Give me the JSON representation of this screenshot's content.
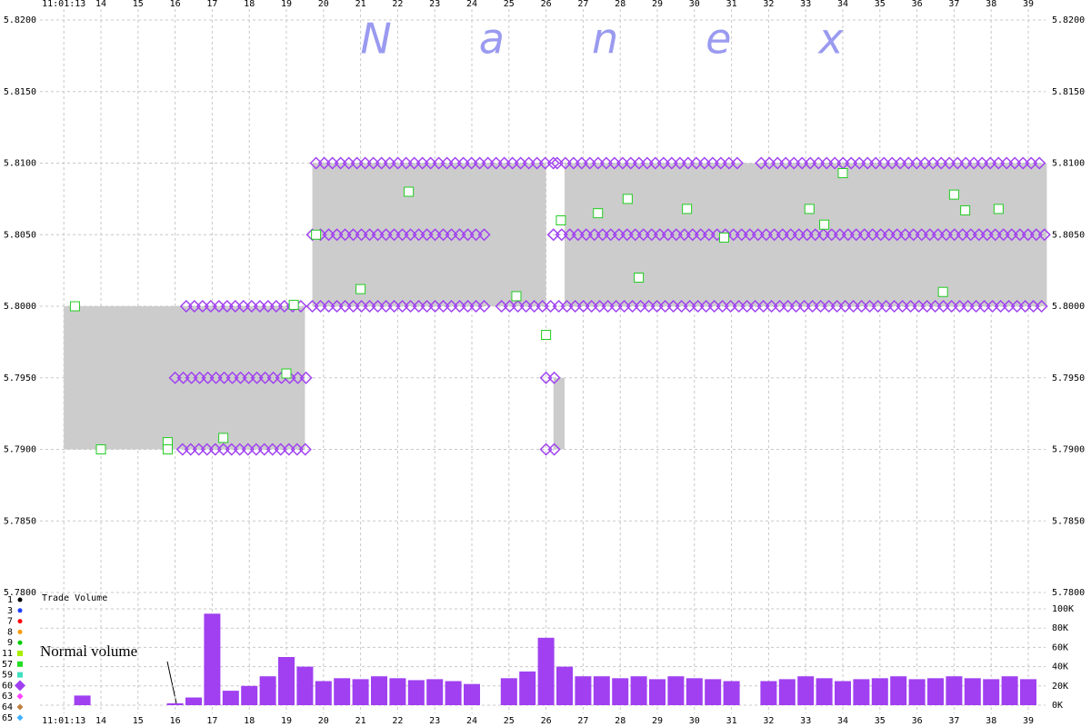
{
  "chart_data": {
    "type": "tick-chart",
    "watermark": "Nanex",
    "volume_title": "Trade Volume",
    "annotation": "Normal volume",
    "xlim": [
      12.4,
      39.9
    ],
    "xticks": [
      {
        "value": 13,
        "label": "11:01:13"
      },
      14,
      15,
      16,
      17,
      18,
      19,
      20,
      21,
      22,
      23,
      24,
      25,
      26,
      27,
      28,
      29,
      30,
      31,
      32,
      33,
      34,
      35,
      36,
      37,
      38,
      39
    ],
    "ylim": [
      5.78,
      5.82
    ],
    "yticks": [
      {
        "value": 5.78,
        "label": "5.7800"
      },
      {
        "value": 5.785,
        "label": "5.7850"
      },
      {
        "value": 5.79,
        "label": "5.7900"
      },
      {
        "value": 5.795,
        "label": "5.7950"
      },
      {
        "value": 5.8,
        "label": "5.8000"
      },
      {
        "value": 5.805,
        "label": "5.8050"
      },
      {
        "value": 5.81,
        "label": "5.8100"
      },
      {
        "value": 5.815,
        "label": "5.8150"
      },
      {
        "value": 5.82,
        "label": "5.8200"
      }
    ],
    "y2lim": [
      0,
      100000
    ],
    "y2ticks": [
      {
        "value": 0,
        "label": "0K"
      },
      {
        "value": 20000,
        "label": "20K"
      },
      {
        "value": 40000,
        "label": "40K"
      },
      {
        "value": 60000,
        "label": "60K"
      },
      {
        "value": 80000,
        "label": "80K"
      },
      {
        "value": 100000,
        "label": "100K"
      }
    ],
    "grid": true,
    "legend": [
      {
        "name": "1",
        "color": "#000000",
        "shape": "circle"
      },
      {
        "name": "3",
        "color": "#2040ff",
        "shape": "circle"
      },
      {
        "name": "7",
        "color": "#ff0000",
        "shape": "circle"
      },
      {
        "name": "8",
        "color": "#ff9900",
        "shape": "circle"
      },
      {
        "name": "9",
        "color": "#00cc00",
        "shape": "circle"
      },
      {
        "name": "11",
        "color": "#aaee00",
        "shape": "square"
      },
      {
        "name": "57",
        "color": "#22dd22",
        "shape": "square"
      },
      {
        "name": "59",
        "color": "#40e0c0",
        "shape": "square"
      },
      {
        "name": "60",
        "color": "#a040f0",
        "shape": "diamond"
      },
      {
        "name": "63",
        "color": "#ff40ff",
        "shape": "diamond"
      },
      {
        "name": "64",
        "color": "#c08040",
        "shape": "diamond"
      },
      {
        "name": "65",
        "color": "#40b0ff",
        "shape": "diamond"
      }
    ],
    "spread_color": "#cccccc",
    "quote_color": "#a040f0",
    "trade_color": "#22cc22",
    "volume_color": "#a040f0",
    "spreads": [
      {
        "start": 13.0,
        "end": 19.5,
        "bid": 5.79,
        "ask": 5.8
      },
      {
        "start": 19.7,
        "end": 26.0,
        "bid": 5.8,
        "ask": 5.81
      },
      {
        "start": 26.2,
        "end": 26.5,
        "bid": 5.79,
        "ask": 5.795
      },
      {
        "start": 26.5,
        "end": 39.5,
        "bid": 5.8,
        "ask": 5.81
      }
    ],
    "quote_runs": [
      {
        "price": 5.81,
        "start": 19.8,
        "end": 26.2
      },
      {
        "price": 5.81,
        "start": 26.3,
        "end": 31.3
      },
      {
        "price": 5.81,
        "start": 31.8,
        "end": 39.5
      },
      {
        "price": 5.805,
        "start": 19.7,
        "end": 24.5
      },
      {
        "price": 5.805,
        "start": 26.2,
        "end": 39.5
      },
      {
        "price": 5.8,
        "start": 16.3,
        "end": 19.5
      },
      {
        "price": 5.8,
        "start": 19.7,
        "end": 24.5
      },
      {
        "price": 5.8,
        "start": 24.8,
        "end": 39.5
      },
      {
        "price": 5.795,
        "start": 16.0,
        "end": 19.6
      },
      {
        "price": 5.795,
        "start": 26.0,
        "end": 26.3
      },
      {
        "price": 5.79,
        "start": 16.2,
        "end": 19.6
      },
      {
        "price": 5.79,
        "start": 26.0,
        "end": 26.3
      }
    ],
    "trades": {
      "x": [
        13.3,
        14.0,
        15.8,
        15.8,
        17.3,
        19.0,
        19.2,
        19.8,
        21.0,
        22.3,
        25.2,
        26.0,
        26.4,
        27.4,
        28.2,
        28.5,
        29.8,
        30.8,
        33.1,
        33.5,
        34.0,
        36.7,
        37.0,
        37.3,
        38.2
      ],
      "y": [
        5.8,
        5.79,
        5.7905,
        5.79,
        5.7908,
        5.7953,
        5.8001,
        5.805,
        5.8012,
        5.808,
        5.8007,
        5.798,
        5.806,
        5.8065,
        5.8075,
        5.802,
        5.8068,
        5.8048,
        5.8068,
        5.8057,
        5.8093,
        5.801,
        5.8078,
        5.8067,
        5.8068
      ]
    },
    "volume": {
      "x": [
        13.0,
        13.5,
        14.0,
        14.5,
        15.0,
        15.5,
        16.0,
        16.5,
        17.0,
        17.5,
        18.0,
        18.5,
        19.0,
        19.5,
        20.0,
        20.5,
        21.0,
        21.5,
        22.0,
        22.5,
        23.0,
        23.5,
        24.0,
        24.5,
        25.0,
        25.5,
        26.0,
        26.5,
        27.0,
        27.5,
        28.0,
        28.5,
        29.0,
        29.5,
        30.0,
        30.5,
        31.0,
        31.5,
        32.0,
        32.5,
        33.0,
        33.5,
        34.0,
        34.5,
        35.0,
        35.5,
        36.0,
        36.5,
        37.0,
        37.5,
        38.0,
        38.5,
        39.0,
        39.5
      ],
      "values": [
        0,
        10000,
        0,
        0,
        0,
        0,
        2000,
        8000,
        95000,
        15000,
        20000,
        30000,
        50000,
        40000,
        25000,
        28000,
        27000,
        30000,
        28000,
        26000,
        27000,
        25000,
        22000,
        0,
        28000,
        35000,
        70000,
        40000,
        30000,
        30000,
        28000,
        30000,
        27000,
        30000,
        28000,
        27000,
        25000,
        0,
        25000,
        27000,
        30000,
        28000,
        25000,
        27000,
        28000,
        30000,
        27000,
        28000,
        30000,
        28000,
        27000,
        30000,
        27000,
        0
      ]
    }
  }
}
